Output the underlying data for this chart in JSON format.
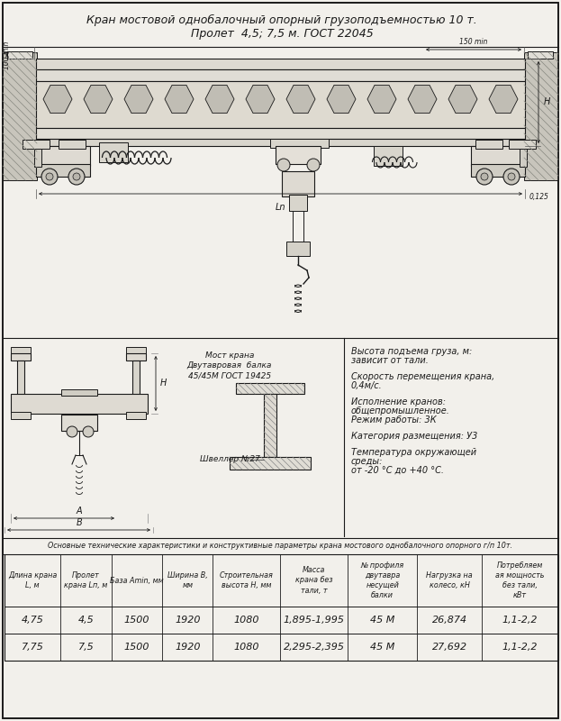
{
  "title_line1": "Кран мостовой однобалочный опорный грузоподъемностью 10 т.",
  "title_line2": "Пролет  4,5; 7,5 м. ГОСТ 22045",
  "bg_color": "#f2f0eb",
  "border_color": "#1a1a1a",
  "text_color": "#1a1a1a",
  "table_header": "Основные технические характеристики и конструктивные параметры крана мостового однобалочного опорного г/п 10т.",
  "col_headers": [
    "Длина крана\nL, м",
    "Пролет\nкрана Lп, м",
    "База Amin, мм",
    "Ширина B,\nмм",
    "Строительная\nвысота H, мм",
    "Масса\nкрана без\nтали, т",
    "№ профиля\nдвутавра\nнесущей\nбалки",
    "Нагрузка на\nколесо, кН",
    "Потребляем\nая мощность\nбез тали,\nкВт"
  ],
  "row1": [
    "4,75",
    "4,5",
    "1500",
    "1920",
    "1080",
    "1,895-1,995",
    "45 М",
    "26,874",
    "1,1-2,2"
  ],
  "row2": [
    "7,75",
    "7,5",
    "1500",
    "1920",
    "1080",
    "2,295-2,395",
    "45 М",
    "27,692",
    "1,1-2,2"
  ],
  "specs": [
    [
      "Высота подъема груза, м:",
      "зависит от тали."
    ],
    [
      "Скорость перемещения крана,",
      "0,4м/с."
    ],
    [
      "Исполнение кранов:",
      "общепромышленное.",
      "Режим работы: 3К"
    ],
    [
      "Категория размещения: У3"
    ],
    [
      "Температура окружающей",
      "среды:",
      "от -20 °С до +40 °С."
    ]
  ],
  "beam_label": [
    "Мост крана",
    "Двутавровая  балка",
    "45/45М ГОСТ 19425"
  ],
  "channel_label": "Швеллер №27",
  "dim_100": "100 min",
  "dim_150": "150 min",
  "dim_ln": "Ln",
  "dim_h": "H",
  "dim_0125": "0,125",
  "dim_A": "A",
  "dim_B": "B"
}
